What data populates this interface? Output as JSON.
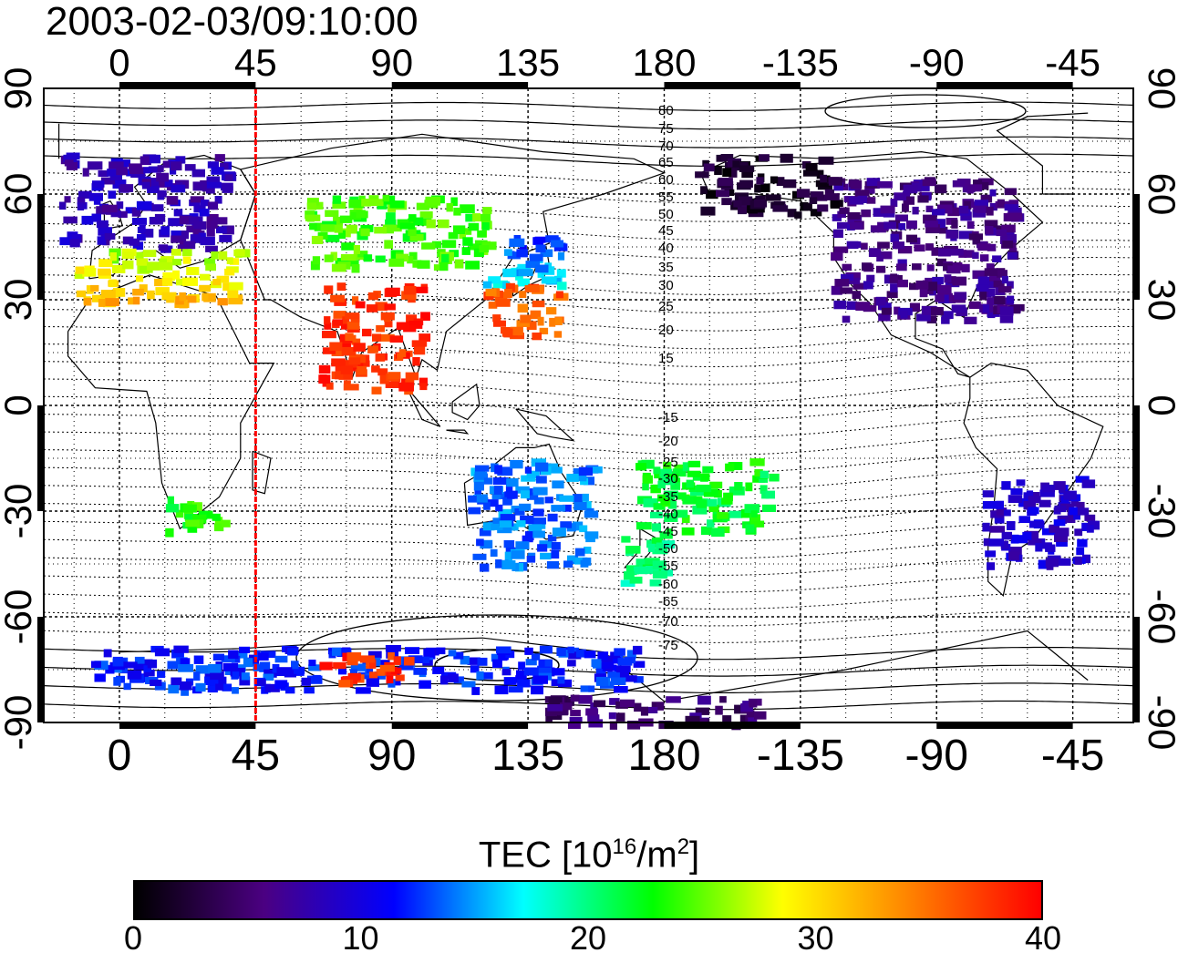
{
  "title": "2003-02-03/09:10:00",
  "axes": {
    "lon_ticks": [
      "0",
      "45",
      "90",
      "135",
      "180",
      "-135",
      "-90",
      "-45"
    ],
    "lat_ticks": [
      "90",
      "60",
      "30",
      "0",
      "-30",
      "-60",
      "-90"
    ]
  },
  "mlat_labels": [
    "80",
    "75",
    "70",
    "65",
    "60",
    "55",
    "50",
    "45",
    "40",
    "35",
    "30",
    "25",
    "20",
    "15",
    "-15",
    "-20",
    "-25",
    "-30",
    "-35",
    "-40",
    "-45",
    "-50",
    "-55",
    "-60",
    "-65",
    "-70",
    "-75"
  ],
  "colorbar": {
    "title": "TEC  [10",
    "title_sup": "16",
    "title_mid": "/m",
    "title_sup2": "2",
    "title_end": "]",
    "min": 0,
    "max": 40,
    "ticks": [
      "0",
      "10",
      "20",
      "30",
      "40"
    ],
    "colors": [
      "#000000",
      "#4b0082",
      "#0000ff",
      "#00ffff",
      "#00ff00",
      "#ffff00",
      "#ff8000",
      "#ff0000"
    ]
  },
  "marker_longitude": 45,
  "marker_color": "#ff0000",
  "tec_regions": [
    {
      "name": "europe",
      "lon": [
        -20,
        35
      ],
      "lat": [
        45,
        72
      ],
      "tec": 8
    },
    {
      "name": "mediterranean",
      "lon": [
        -15,
        40
      ],
      "lat": [
        30,
        45
      ],
      "tec": 26
    },
    {
      "name": "east-asia-north",
      "lon": [
        120,
        145
      ],
      "lat": [
        35,
        50
      ],
      "tec": 11
    },
    {
      "name": "east-asia-south",
      "lon": [
        120,
        145
      ],
      "lat": [
        20,
        35
      ],
      "tec": 36
    },
    {
      "name": "north-america",
      "lon": [
        -125,
        -65
      ],
      "lat": [
        25,
        65
      ],
      "tec": 6
    },
    {
      "name": "alaska",
      "lon": [
        -170,
        -125
      ],
      "lat": [
        55,
        72
      ],
      "tec": 2
    },
    {
      "name": "australia",
      "lon": [
        115,
        155
      ],
      "lat": [
        -45,
        -15
      ],
      "tec": 14
    },
    {
      "name": "south-america",
      "lon": [
        -75,
        -40
      ],
      "lat": [
        -45,
        -20
      ],
      "tec": 9
    },
    {
      "name": "antarctic-coast",
      "lon": [
        -10,
        170
      ],
      "lat": [
        -80,
        -68
      ],
      "tec": 12
    },
    {
      "name": "antarctic-red",
      "lon": [
        65,
        95
      ],
      "lat": [
        -78,
        -70
      ],
      "tec": 38
    },
    {
      "name": "south-pacific-purple",
      "lon": [
        140,
        -150
      ],
      "lat": [
        -90,
        -82
      ],
      "tec": 5
    },
    {
      "name": "south-africa",
      "lon": [
        15,
        35
      ],
      "lat": [
        -35,
        -25
      ],
      "tec": 23
    },
    {
      "name": "india",
      "lon": [
        65,
        100
      ],
      "lat": [
        5,
        35
      ],
      "tec": 38
    },
    {
      "name": "pacific-islands",
      "lon": [
        170,
        -145
      ],
      "lat": [
        -35,
        -15
      ],
      "tec": 22
    },
    {
      "name": "new-zealand",
      "lon": [
        165,
        180
      ],
      "lat": [
        -50,
        -35
      ],
      "tec": 20
    },
    {
      "name": "siberia",
      "lon": [
        60,
        120
      ],
      "lat": [
        40,
        60
      ],
      "tec": 24
    }
  ]
}
